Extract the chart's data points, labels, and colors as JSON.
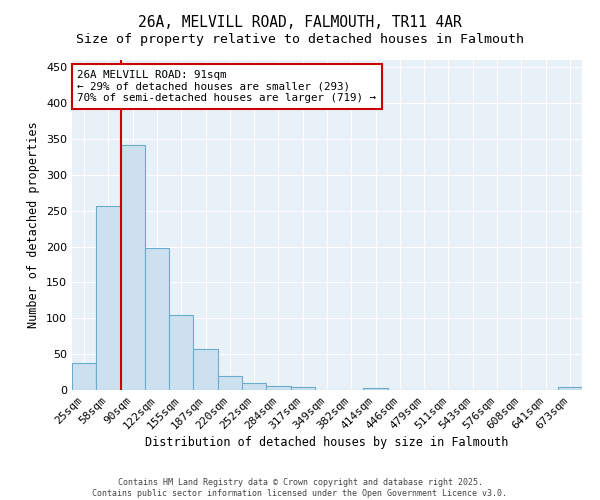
{
  "title": "26A, MELVILL ROAD, FALMOUTH, TR11 4AR",
  "subtitle": "Size of property relative to detached houses in Falmouth",
  "xlabel": "Distribution of detached houses by size in Falmouth",
  "ylabel": "Number of detached properties",
  "bar_labels": [
    "25sqm",
    "58sqm",
    "90sqm",
    "122sqm",
    "155sqm",
    "187sqm",
    "220sqm",
    "252sqm",
    "284sqm",
    "317sqm",
    "349sqm",
    "382sqm",
    "414sqm",
    "446sqm",
    "479sqm",
    "511sqm",
    "543sqm",
    "576sqm",
    "608sqm",
    "641sqm",
    "673sqm"
  ],
  "bar_values": [
    37,
    256,
    341,
    198,
    105,
    57,
    20,
    10,
    6,
    4,
    0,
    0,
    3,
    0,
    0,
    0,
    0,
    0,
    0,
    0,
    4
  ],
  "bar_color": "#cce0f0",
  "bar_edgecolor": "#6aaCCd",
  "bar_alpha": 1.0,
  "vline_x": 1.5,
  "vline_color": "#cc0000",
  "annotation_text": "26A MELVILL ROAD: 91sqm\n← 29% of detached houses are smaller (293)\n70% of semi-detached houses are larger (719) →",
  "annotation_box_color": "#ffffff",
  "annotation_box_edgecolor": "#cc0000",
  "ylim": [
    0,
    460
  ],
  "yticks": [
    0,
    50,
    100,
    150,
    200,
    250,
    300,
    350,
    400,
    450
  ],
  "bg_color": "#e8f0f8",
  "footer1": "Contains HM Land Registry data © Crown copyright and database right 2025.",
  "footer2": "Contains public sector information licensed under the Open Government Licence v3.0.",
  "title_fontsize": 10.5,
  "subtitle_fontsize": 9.5,
  "xlabel_fontsize": 8.5,
  "ylabel_fontsize": 8.5,
  "tick_fontsize": 8,
  "annotation_fontsize": 7.8
}
